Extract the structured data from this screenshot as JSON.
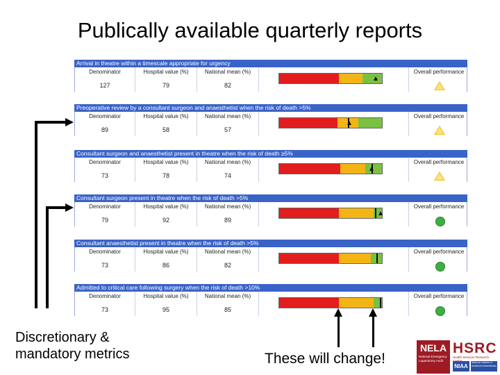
{
  "title": "Publically available quarterly reports",
  "columns": {
    "denominator": "Denominator",
    "hospital": "Hospital value (%)",
    "national": "National mean (%)",
    "performance": "Overall performance"
  },
  "metrics": [
    {
      "header": "Arrival in theatre within a timescale appropriate for urgency",
      "denominator": "127",
      "hospital": "79",
      "national": "82",
      "status": "amber-triangle"
    },
    {
      "header": "Preoperative review by a consultant surgeon and anaesthetist when the risk of death >5%",
      "denominator": "89",
      "hospital": "58",
      "national": "57",
      "status": "amber-triangle"
    },
    {
      "header": "Consultant surgeon and anaesthetist present in theatre when the risk of death ≥5%",
      "denominator": "73",
      "hospital": "78",
      "national": "74",
      "status": "amber-triangle"
    },
    {
      "header": "Consultant surgeon present in theatre when the risk of death >5%",
      "denominator": "79",
      "hospital": "92",
      "national": "89",
      "status": "green-circle"
    },
    {
      "header": "Consultant anaesthetist present in theatre when the risk of death >5%",
      "denominator": "73",
      "hospital": "86",
      "national": "82",
      "status": "green-circle"
    },
    {
      "header": "Admitted to critical care following surgery when the risk of death >10%",
      "denominator": "73",
      "hospital": "95",
      "national": "85",
      "status": "green-circle"
    }
  ],
  "captions": {
    "left_line1": "Discretionary &",
    "left_line2": "mandatory metrics",
    "right": "These will change!"
  },
  "logos": {
    "nela": "NELA",
    "nela_sub": "National Emergency Laparotomy Audit",
    "hsrc": "HSRC",
    "hsrc_sub": "Health Services Research Centre",
    "niaa": "NIAA",
    "niaa_sub": "National Institute of Academic Anaesthesia"
  },
  "colors": {
    "header": "#3a63c8",
    "red": "#e21d1d",
    "amber": "#f3b516",
    "green": "#7ac142",
    "logo_red": "#9e1b23",
    "logo_blue": "#2b4fa3"
  }
}
